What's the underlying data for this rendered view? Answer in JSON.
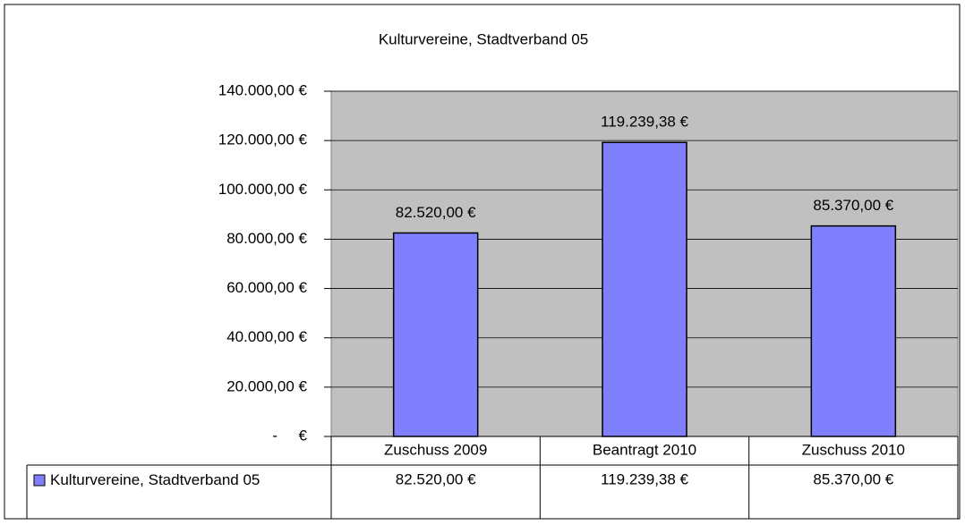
{
  "chart_data": {
    "type": "bar",
    "title": "Kulturvereine, Stadtverband 05",
    "categories": [
      "Zuschuss 2009",
      "Beantragt 2010",
      "Zuschuss 2010"
    ],
    "series": [
      {
        "name": "Kulturvereine, Stadtverband 05",
        "color": "#8080ff",
        "values": [
          82520,
          119239.38,
          85370
        ],
        "value_labels": [
          "82.520,00 €",
          "119.239,38 €",
          "85.370,00 €"
        ]
      }
    ],
    "ylim": [
      0,
      140000
    ],
    "yticks": [
      {
        "value": 0,
        "label": "-     €"
      },
      {
        "value": 20000,
        "label": "20.000,00 €"
      },
      {
        "value": 40000,
        "label": "40.000,00 €"
      },
      {
        "value": 60000,
        "label": "60.000,00 €"
      },
      {
        "value": 80000,
        "label": "80.000,00 €"
      },
      {
        "value": 100000,
        "label": "100.000,00 €"
      },
      {
        "value": 120000,
        "label": "120.000,00 €"
      },
      {
        "value": 140000,
        "label": "140.000,00 €"
      }
    ],
    "grid": true,
    "plot_background": "#c0c0c0"
  }
}
